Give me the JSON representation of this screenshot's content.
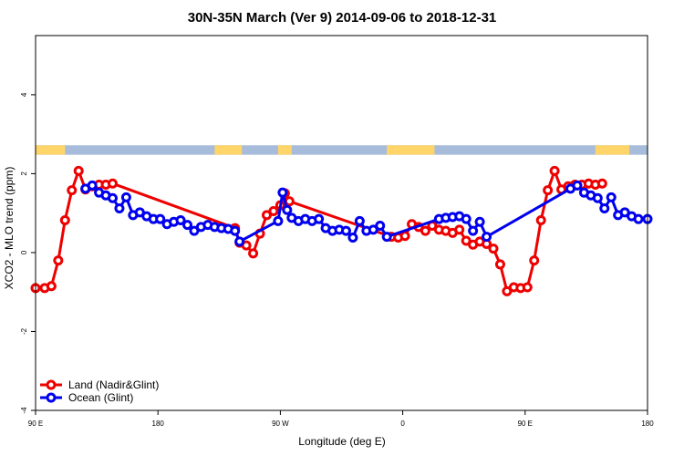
{
  "chart_data": {
    "type": "line",
    "title": "30N-35N March (Ver 9)   2014-09-06 to 2018-12-31",
    "xlabel": "Longitude (deg E)",
    "ylabel": "XCO2 - MLO trend (ppm)",
    "xlim": [
      -90,
      180
    ],
    "ylim": [
      -4,
      5.5
    ],
    "x_ticks": [
      {
        "value": -90,
        "label": "90 E"
      },
      {
        "value": -36,
        "label": "180"
      },
      {
        "value": 18,
        "label": "90 W"
      },
      {
        "value": 72,
        "label": "0"
      },
      {
        "value": 126,
        "label": "90 E"
      },
      {
        "value": 180,
        "label": "180"
      }
    ],
    "y_ticks": [
      -4,
      -2,
      0,
      2,
      4
    ],
    "grid": false,
    "legend_position": "bottom-left",
    "surface_mask": {
      "description": "land/ocean strip",
      "land_color": "#FFD56A",
      "ocean_color": "#A7BCDA",
      "y_range": [
        2.48,
        2.72
      ],
      "land_ranges": [
        [
          -90,
          -77
        ],
        [
          -11,
          1
        ],
        [
          17,
          23
        ],
        [
          65,
          86
        ],
        [
          157,
          172
        ]
      ]
    },
    "series": [
      {
        "name": "Land (Nadir&Glint)",
        "color": "#EE0000",
        "x": [
          -90,
          -86,
          -83,
          -80,
          -77,
          -74,
          -71,
          -68,
          -65,
          -62,
          -59,
          -56,
          -2,
          0,
          3,
          6,
          9,
          12,
          15,
          18,
          20,
          22,
          67,
          70,
          73,
          76,
          79,
          82,
          85,
          88,
          91,
          94,
          97,
          100,
          103,
          106,
          109,
          112,
          115,
          118,
          121,
          124,
          127,
          130,
          133,
          136,
          139,
          142,
          145,
          148,
          151,
          154,
          157,
          160
        ],
        "values": [
          -0.9,
          -0.9,
          -0.85,
          -0.2,
          0.82,
          1.58,
          2.07,
          1.6,
          1.68,
          1.72,
          1.72,
          1.75,
          0.62,
          0.25,
          0.18,
          -0.02,
          0.48,
          0.95,
          1.05,
          1.2,
          1.5,
          1.3,
          0.4,
          0.38,
          0.42,
          0.72,
          0.65,
          0.55,
          0.68,
          0.58,
          0.55,
          0.5,
          0.58,
          0.3,
          0.2,
          0.28,
          0.22,
          0.1,
          -0.3,
          -0.98,
          -0.88,
          -0.9,
          -0.88,
          -0.2,
          0.82,
          1.58,
          2.07,
          1.6,
          1.68,
          1.72,
          1.72,
          1.75,
          1.72,
          1.75
        ]
      },
      {
        "name": "Ocean (Glint)",
        "color": "#0000EE",
        "x": [
          -68,
          -65,
          -62,
          -59,
          -56,
          -53,
          -50,
          -47,
          -44,
          -41,
          -38,
          -35,
          -32,
          -29,
          -26,
          -23,
          -20,
          -17,
          -14,
          -11,
          -8,
          -5,
          -2,
          0,
          17,
          19,
          21,
          23,
          26,
          29,
          32,
          35,
          38,
          41,
          44,
          47,
          50,
          53,
          56,
          59,
          62,
          65,
          88,
          91,
          94,
          97,
          100,
          103,
          106,
          109,
          146,
          149,
          152,
          155,
          158,
          161,
          164,
          167,
          170,
          173,
          176,
          180
        ],
        "values": [
          1.62,
          1.7,
          1.52,
          1.45,
          1.38,
          1.12,
          1.4,
          0.95,
          1.02,
          0.92,
          0.85,
          0.85,
          0.72,
          0.78,
          0.82,
          0.7,
          0.55,
          0.65,
          0.7,
          0.65,
          0.62,
          0.6,
          0.55,
          0.28,
          0.8,
          1.52,
          1.08,
          0.88,
          0.8,
          0.85,
          0.8,
          0.85,
          0.62,
          0.55,
          0.58,
          0.55,
          0.38,
          0.8,
          0.55,
          0.58,
          0.68,
          0.4,
          0.85,
          0.88,
          0.9,
          0.92,
          0.85,
          0.55,
          0.78,
          0.4,
          1.62,
          1.7,
          1.52,
          1.45,
          1.38,
          1.12,
          1.4,
          0.95,
          1.02,
          0.92,
          0.85,
          0.85
        ]
      }
    ]
  }
}
